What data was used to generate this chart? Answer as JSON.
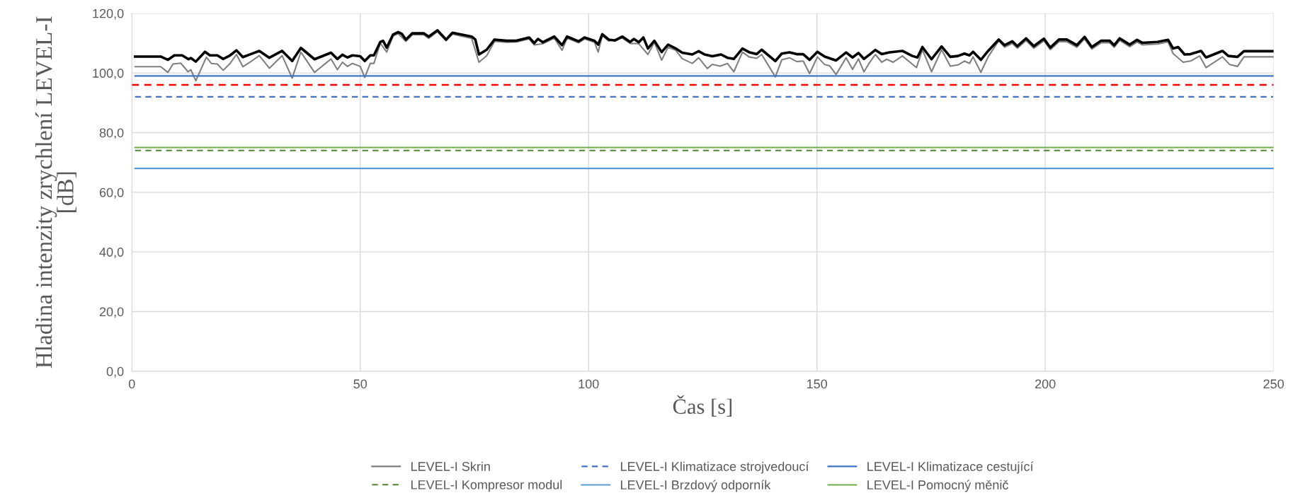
{
  "chart_data": {
    "type": "line",
    "xlabel": "Čas [s]",
    "ylabel": "Hladina intenzity zrychlení LEVEL-I\n[dB]",
    "xlim": [
      0,
      250
    ],
    "xticks": [
      0,
      50,
      100,
      150,
      200,
      250
    ],
    "ylim": [
      0,
      120
    ],
    "yticks": [
      {
        "value": 0,
        "label": "0,0"
      },
      {
        "value": 20,
        "label": "20,0"
      },
      {
        "value": 40,
        "label": "40,0"
      },
      {
        "value": 60,
        "label": "60,0"
      },
      {
        "value": 80,
        "label": "80,0"
      },
      {
        "value": 100,
        "label": "100,0"
      },
      {
        "value": 120,
        "label": "120,0"
      }
    ],
    "grid": true,
    "legend": "bottom",
    "marker": "none",
    "series": [
      {
        "name": "LEVEL-I Skrin",
        "color": "#7f7f7f",
        "line_style": "solid",
        "x": [
          0.7,
          6.3,
          7.9,
          9.0,
          10.7,
          12.3,
          12.9,
          14.0,
          16.3,
          17.4,
          18.7,
          20.0,
          21.5,
          22.9,
          24.3,
          26.2,
          27.9,
          30.1,
          32.9,
          35.1,
          37.0,
          40.0,
          43.6,
          45.0,
          46.1,
          47.2,
          48.3,
          50.0,
          51.0,
          52.2,
          53.0,
          54.4,
          55.8,
          57.2,
          58.3,
          60.0,
          61.4,
          63.9,
          65.0,
          66.9,
          68.8,
          70.2,
          74.4,
          76.0,
          77.7,
          79.4,
          82.1,
          84.3,
          87.0,
          88.1,
          90.0,
          92.5,
          94.2,
          95.3,
          97.8,
          99.1,
          101.3,
          102.1,
          103.0,
          104.4,
          107.4,
          109.1,
          111.0,
          113.0,
          114.4,
          116.0,
          117.4,
          119.1,
          120.5,
          122.7,
          124.1,
          126.0,
          127.1,
          128.8,
          130.4,
          131.8,
          133.7,
          135.1,
          136.8,
          137.9,
          140.9,
          142.3,
          144.0,
          145.6,
          147.0,
          148.4,
          150.1,
          151.7,
          152.8,
          154.2,
          156.4,
          157.8,
          159.1,
          160.3,
          161.4,
          162.8,
          164.2,
          165.3,
          166.7,
          168.7,
          171.8,
          173.1,
          175.1,
          177.3,
          179.2,
          180.9,
          182.3,
          183.4,
          184.2,
          185.9,
          187.5,
          189.8,
          191.1,
          192.8,
          193.9,
          195.8,
          197.5,
          199.7,
          201.1,
          203.0,
          204.7,
          206.9,
          208.6,
          210.2,
          212.2,
          214.1,
          215.1,
          216.3,
          218.5,
          220.1,
          221.3,
          224.6,
          226.9,
          228.0,
          230.2,
          231.8,
          233.8,
          235.2,
          238.8,
          240.4,
          242.1,
          243.5,
          249.9
        ],
        "values": [
          102.1,
          102.1,
          100.2,
          103.0,
          103.3,
          100.4,
          101.1,
          97.4,
          105.3,
          103.2,
          103.0,
          100.9,
          103.2,
          106.2,
          102.1,
          104.0,
          105.8,
          101.6,
          105.8,
          98.3,
          107.0,
          100.2,
          104.7,
          101.1,
          103.6,
          102.2,
          103.2,
          102.2,
          98.5,
          103.2,
          103.2,
          110.0,
          107.0,
          112.4,
          113.2,
          110.6,
          112.8,
          112.8,
          111.6,
          113.8,
          110.8,
          113.0,
          111.6,
          103.6,
          105.8,
          110.6,
          110.3,
          110.4,
          111.4,
          109.4,
          109.8,
          111.7,
          107.6,
          111.7,
          110.1,
          111.4,
          110.3,
          107.0,
          112.5,
          110.7,
          111.7,
          109.9,
          109.8,
          106.2,
          110.3,
          104.3,
          108.6,
          107.6,
          104.8,
          103.2,
          105.1,
          101.5,
          102.9,
          102.3,
          103.2,
          100.4,
          107.0,
          105.4,
          104.9,
          106.2,
          98.7,
          104.4,
          105.1,
          103.8,
          104.0,
          99.8,
          105.4,
          102.8,
          102.4,
          99.5,
          105.1,
          101.2,
          104.7,
          100.4,
          103.2,
          106.2,
          103.6,
          104.6,
          103.6,
          105.7,
          101.8,
          107.8,
          100.4,
          107.8,
          102.3,
          102.7,
          104.0,
          103.2,
          105.4,
          100.2,
          105.4,
          110.8,
          108.6,
          109.9,
          108.3,
          110.9,
          108.3,
          110.8,
          107.8,
          110.5,
          110.5,
          108.6,
          111.4,
          108.0,
          110.1,
          110.1,
          108.6,
          110.9,
          108.8,
          110.4,
          109.4,
          109.7,
          110.4,
          106.5,
          103.6,
          104.0,
          105.7,
          101.8,
          105.4,
          102.8,
          102.2,
          105.4,
          105.4
        ]
      },
      {
        "color": "#000000",
        "line_style": "solid",
        "x": [
          0.7,
          6.3,
          7.9,
          9.3,
          11.0,
          12.4,
          12.9,
          14.0,
          16.0,
          17.1,
          18.7,
          20.0,
          21.5,
          22.9,
          24.3,
          26.2,
          27.9,
          30.1,
          32.9,
          35.1,
          37.0,
          40.0,
          43.6,
          45.0,
          46.1,
          47.2,
          48.3,
          50.0,
          51.0,
          52.2,
          53.0,
          54.4,
          55.0,
          55.8,
          57.2,
          58.3,
          59.1,
          60.0,
          61.4,
          63.9,
          65.0,
          66.9,
          68.8,
          70.2,
          74.4,
          75.2,
          76.0,
          77.7,
          79.4,
          82.1,
          84.2,
          87.0,
          88.1,
          88.9,
          90.0,
          92.5,
          94.2,
          95.3,
          97.8,
          99.1,
          101.3,
          102.1,
          103.0,
          104.4,
          105.8,
          107.4,
          109.1,
          109.9,
          111.0,
          112.0,
          113.0,
          114.4,
          116.0,
          117.4,
          119.1,
          120.5,
          122.7,
          124.1,
          125.4,
          127.1,
          129.0,
          130.4,
          131.8,
          133.7,
          135.1,
          136.8,
          137.9,
          140.9,
          142.3,
          144.0,
          145.6,
          147.0,
          148.4,
          150.1,
          151.7,
          154.2,
          156.4,
          157.8,
          159.1,
          160.3,
          162.8,
          164.2,
          165.9,
          168.7,
          170.9,
          172.0,
          173.1,
          175.1,
          177.3,
          179.2,
          180.9,
          182.3,
          183.4,
          184.2,
          185.9,
          187.5,
          189.8,
          191.1,
          192.8,
          193.9,
          195.8,
          197.5,
          199.7,
          201.1,
          203.0,
          204.7,
          206.9,
          208.6,
          210.2,
          212.2,
          214.1,
          215.1,
          216.3,
          218.5,
          220.1,
          221.3,
          224.6,
          226.9,
          228.0,
          229.1,
          230.5,
          231.8,
          234.1,
          235.2,
          238.8,
          240.1,
          242.1,
          243.5,
          249.9
        ],
        "values": [
          105.5,
          105.5,
          104.4,
          105.9,
          105.9,
          104.6,
          105.0,
          103.8,
          107.1,
          105.9,
          105.9,
          104.7,
          105.9,
          107.6,
          105.3,
          106.4,
          107.4,
          105.1,
          107.4,
          104.0,
          108.4,
          104.6,
          106.8,
          104.7,
          106.1,
          105.2,
          105.9,
          105.6,
          104.0,
          105.9,
          105.9,
          110.4,
          110.8,
          108.5,
          112.9,
          113.7,
          113.1,
          111.2,
          113.3,
          113.3,
          112.2,
          114.3,
          111.2,
          113.5,
          112.2,
          111.2,
          106.2,
          107.8,
          111.2,
          110.8,
          110.8,
          111.9,
          110.0,
          111.4,
          110.3,
          112.2,
          109.3,
          112.2,
          110.6,
          111.9,
          110.8,
          109.5,
          113.0,
          111.2,
          110.9,
          112.2,
          110.4,
          111.4,
          110.3,
          111.9,
          108.2,
          110.8,
          107.0,
          109.5,
          108.2,
          106.8,
          106.2,
          107.3,
          106.2,
          105.6,
          106.2,
          105.1,
          104.7,
          108.2,
          107.0,
          106.3,
          107.8,
          104.0,
          106.5,
          106.9,
          106.3,
          106.3,
          104.4,
          107.1,
          105.5,
          104.2,
          106.9,
          105.2,
          106.7,
          104.7,
          107.7,
          106.3,
          106.9,
          107.4,
          105.7,
          105.2,
          108.7,
          104.6,
          108.9,
          105.4,
          105.7,
          106.5,
          105.9,
          107.1,
          104.4,
          107.4,
          111.2,
          109.3,
          110.6,
          109.0,
          111.6,
          109.0,
          111.5,
          108.5,
          111.2,
          111.2,
          109.3,
          112.1,
          108.7,
          110.8,
          110.8,
          109.3,
          111.6,
          109.5,
          111.1,
          110.1,
          110.4,
          111.1,
          108.2,
          108.7,
          106.2,
          106.3,
          107.4,
          105.2,
          107.4,
          105.7,
          105.4,
          107.3,
          107.3
        ]
      },
      {
        "name": "LEVEL-I Klimatizace strojvedoucí",
        "color": "#4472c4",
        "line_style": "dashed",
        "x": [
          0.7,
          249.9
        ],
        "values": [
          92,
          92
        ]
      },
      {
        "name": "LEVEL-I Klimatizace cestující",
        "color": "#4472c4",
        "line_style": "solid",
        "x": [
          0.7,
          249.9
        ],
        "values": [
          99,
          99
        ]
      },
      {
        "name": "LEVEL-I Kompresor modul",
        "color": "#548235",
        "line_style": "dashed",
        "x": [
          0.7,
          249.9
        ],
        "values": [
          74,
          74
        ]
      },
      {
        "name": "LEVEL-I Brzdový odporník",
        "color": "#5b9bd5",
        "line_style": "solid",
        "x": [
          0.7,
          249.9
        ],
        "values": [
          68,
          68
        ]
      },
      {
        "name": "LEVEL-I Pomocný měnič",
        "color": "#70ad47",
        "line_style": "solid",
        "x": [
          0.7,
          249.9
        ],
        "values": [
          75,
          75
        ]
      }
    ],
    "ref_lines": [
      {
        "axis": "y",
        "value": 96,
        "color": "#ff0000",
        "line_style": "dashed"
      }
    ]
  }
}
